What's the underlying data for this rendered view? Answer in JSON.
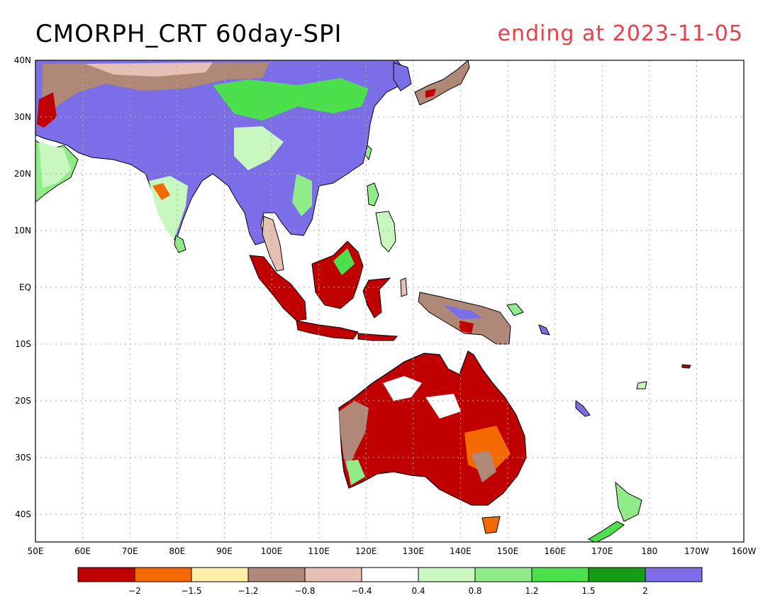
{
  "header": {
    "title": "CMORPH_CRT 60day-SPI",
    "date": "ending at 2023-11-05"
  },
  "map": {
    "lat_labels": [
      "40N",
      "30N",
      "20N",
      "10N",
      "EQ",
      "10S",
      "20S",
      "30S",
      "40S"
    ],
    "lon_labels": [
      "50E",
      "60E",
      "70E",
      "80E",
      "90E",
      "100E",
      "110E",
      "120E",
      "130E",
      "140E",
      "150E",
      "160E",
      "170E",
      "180",
      "170W",
      "160W"
    ]
  },
  "legend": {
    "colors": [
      "#c00000",
      "#f56a00",
      "#fff0a8",
      "#b08878",
      "#e6c0b4",
      "#ffffff",
      "#c8f8c0",
      "#90ec88",
      "#4ce04c",
      "#149c14",
      "#7b6ee6"
    ],
    "labels": [
      "-2",
      "-1.5",
      "-1.2",
      "-0.8",
      "-0.4",
      "0.4",
      "0.8",
      "1.2",
      "1.5",
      "2"
    ]
  },
  "palette": {
    "dry": "#c00000",
    "wet": "#7b6ee6",
    "title_accent": "#e8404a"
  }
}
